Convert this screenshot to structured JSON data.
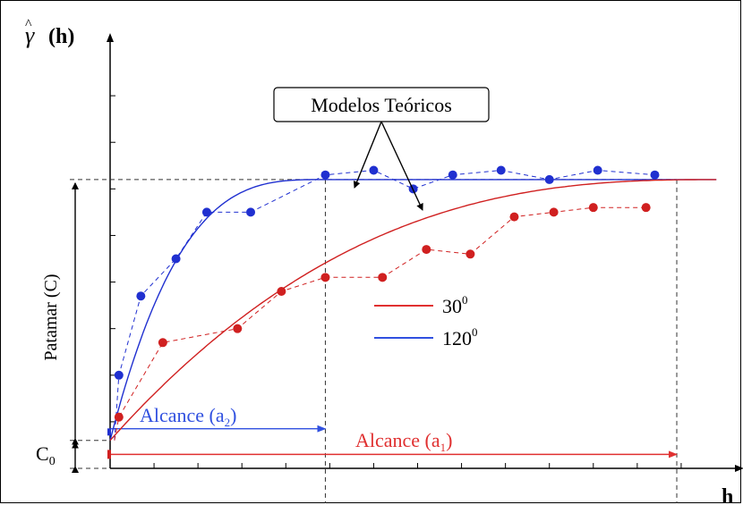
{
  "chart_data": {
    "type": "scatter",
    "ylabel_symbol": "γ",
    "ylabel_suffix": "(h)",
    "xlabel": "h",
    "annotation_box": "Modelos Teóricos",
    "sill_label": "Patamar (C)",
    "nugget_label_main": "C",
    "nugget_label_sub": "0",
    "range_blue_label_main": "Alcance (a",
    "range_blue_label_sub": "2",
    "range_blue_label_close": ")",
    "range_red_label_main": "Alcance (a",
    "range_red_label_sub": "1",
    "range_red_label_close": ")",
    "legend": [
      {
        "label": "30",
        "sup": "0",
        "color": "#e03030"
      },
      {
        "label": "120",
        "sup": "0",
        "color": "#3050e0"
      }
    ],
    "xlim": [
      0,
      14
    ],
    "ylim": [
      0,
      9
    ],
    "nugget": 0.6,
    "sill": 6.2,
    "range_blue": 4.9,
    "range_red": 12.9,
    "series": [
      {
        "color": "#2030d0",
        "points": [
          [
            0.1,
            0.6
          ],
          [
            0.2,
            2.0
          ],
          [
            0.7,
            3.7
          ],
          [
            1.5,
            4.5
          ],
          [
            2.2,
            5.5
          ],
          [
            3.2,
            5.5
          ],
          [
            4.9,
            6.3
          ],
          [
            6.0,
            6.4
          ],
          [
            6.9,
            6.0
          ],
          [
            7.8,
            6.3
          ],
          [
            8.9,
            6.4
          ],
          [
            10.0,
            6.2
          ],
          [
            11.1,
            6.4
          ],
          [
            12.4,
            6.3
          ]
        ]
      },
      {
        "color": "#d02020",
        "points": [
          [
            0.1,
            0.6
          ],
          [
            0.2,
            1.1
          ],
          [
            1.2,
            2.7
          ],
          [
            2.9,
            3.0
          ],
          [
            3.9,
            3.8
          ],
          [
            4.9,
            4.1
          ],
          [
            6.2,
            4.1
          ],
          [
            7.2,
            4.7
          ],
          [
            8.2,
            4.6
          ],
          [
            9.2,
            5.4
          ],
          [
            10.1,
            5.5
          ],
          [
            11.0,
            5.6
          ],
          [
            12.2,
            5.6
          ]
        ]
      }
    ]
  }
}
